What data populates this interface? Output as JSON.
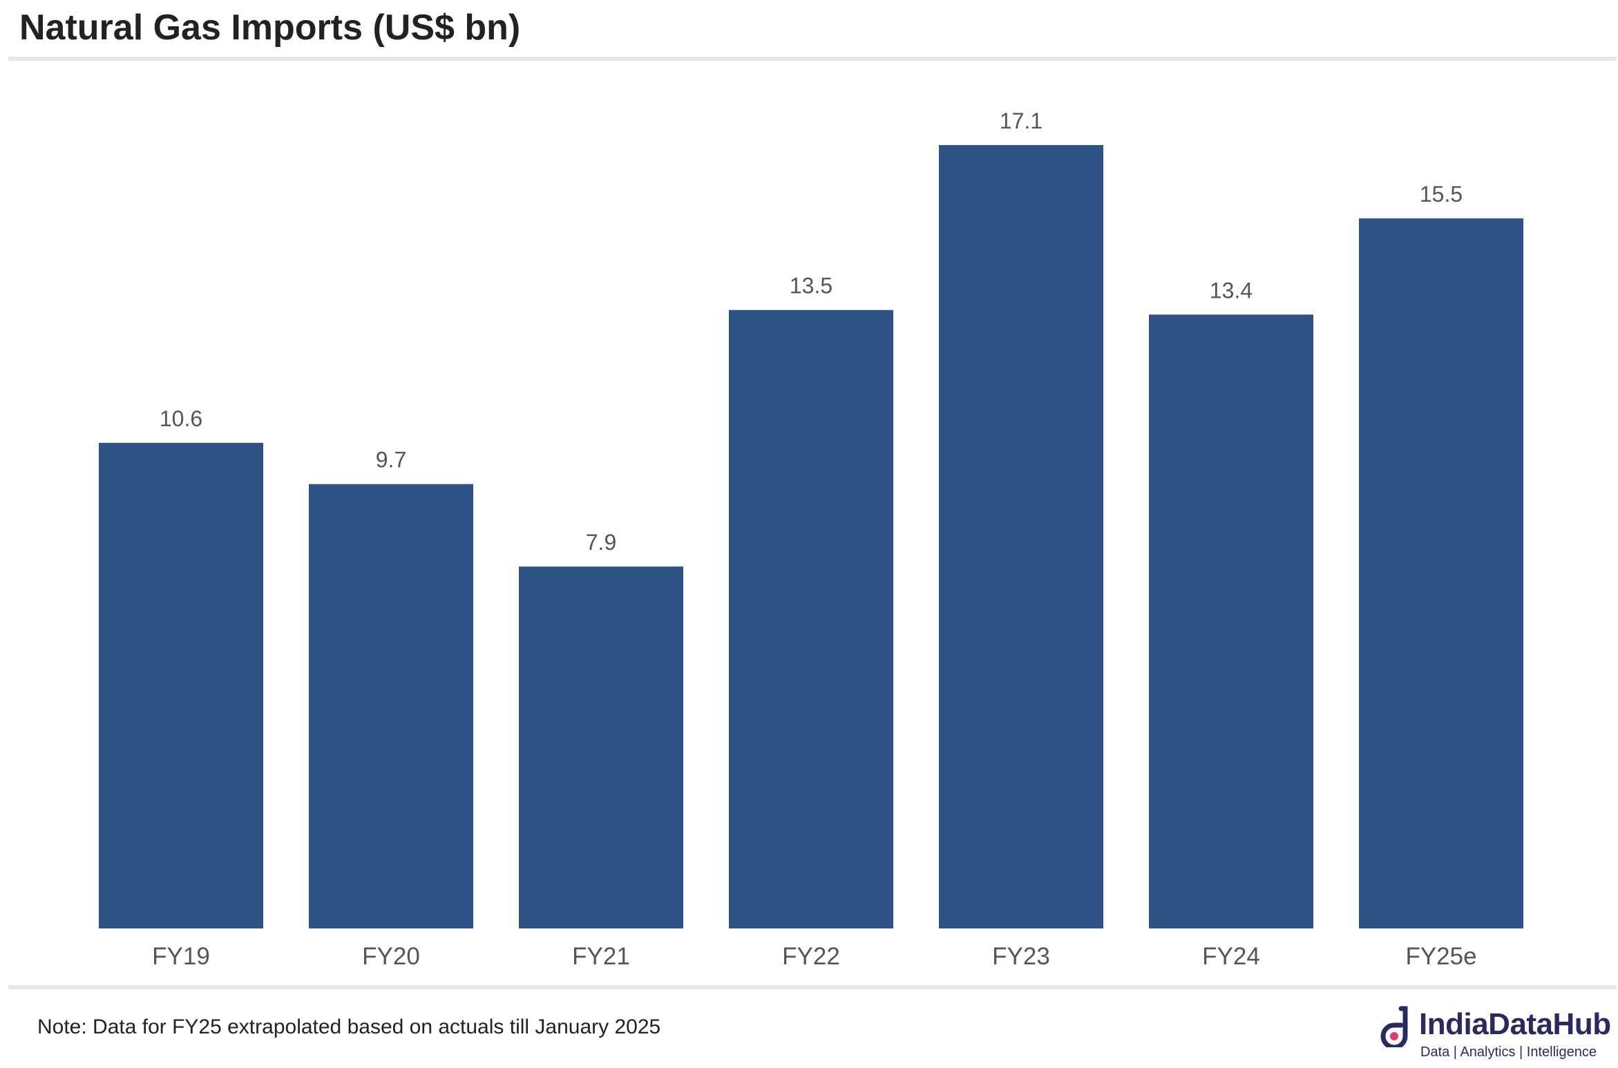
{
  "header": {
    "title": "Natural Gas Imports (US$ bn)"
  },
  "footer": {
    "note": "Note: Data for FY25 extrapolated based on actuals till January 2025",
    "brand_name": "IndiaDataHub",
    "brand_tagline": "Data | Analytics | Intelligence"
  },
  "colors": {
    "bar": "#2e5485",
    "label": "#555555",
    "brand": "#2b2a5e",
    "brand_accent": "#e0367a"
  },
  "icons": {
    "logo": "indiadatahub-logo-icon"
  },
  "chart_data": {
    "type": "bar",
    "title": "Natural Gas Imports (US$ bn)",
    "categories": [
      "FY19",
      "FY20",
      "FY21",
      "FY22",
      "FY23",
      "FY24",
      "FY25e"
    ],
    "values": [
      10.6,
      9.7,
      7.9,
      13.5,
      17.1,
      13.4,
      15.5
    ],
    "data_labels": [
      "10.6",
      "9.7",
      "7.9",
      "13.5",
      "17.1",
      "13.4",
      "15.5"
    ],
    "xlabel": "",
    "ylabel": "",
    "ylim": [
      0,
      17.1
    ],
    "grid": false,
    "legend": "none"
  }
}
